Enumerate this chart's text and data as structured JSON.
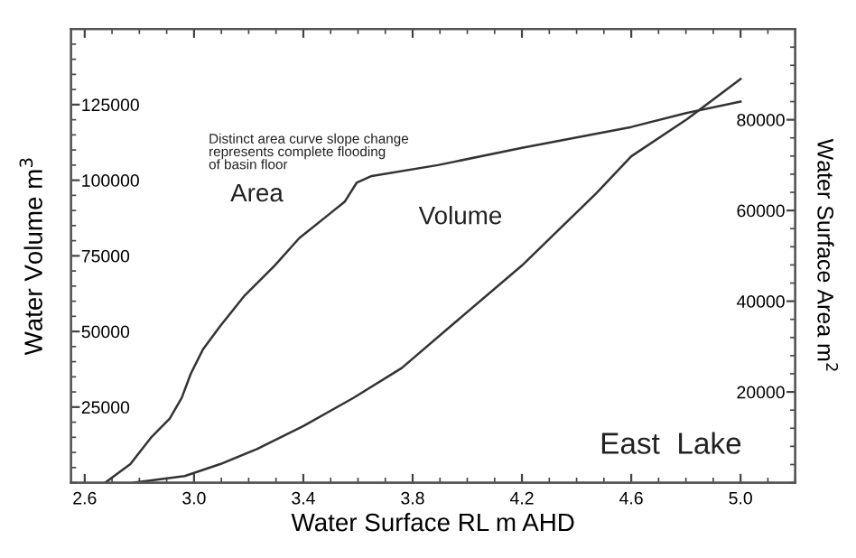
{
  "chart_data": {
    "type": "line",
    "xlabel": "Water Surface RL m AHD",
    "ylabel": "Water Volume m$^{3}$",
    "y2label": "Water Surface Area m$^{2}$",
    "xlim": [
      2.55,
      5.2
    ],
    "xticks": [
      2.6,
      {
        "value": 3.0,
        "label": "3.0"
      },
      3.4,
      3.8,
      4.2,
      4.6,
      {
        "value": 5.0,
        "label": "5.0"
      }
    ],
    "ylim": [
      0,
      150000
    ],
    "yticks": [
      25000,
      50000,
      75000,
      100000,
      125000
    ],
    "y2lim": [
      0,
      100000
    ],
    "y2ticks": [
      20000,
      40000,
      60000,
      80000
    ],
    "grid": false,
    "legend": false,
    "series": [
      {
        "name": "Area",
        "axis": "y2",
        "color": "#333333",
        "x": [
          2.675,
          2.767,
          2.845,
          2.911,
          2.955,
          2.988,
          3.032,
          3.098,
          3.186,
          3.296,
          3.385,
          3.495,
          3.551,
          3.595,
          3.65,
          3.892,
          4.2,
          4.6,
          4.804,
          5.0
        ],
        "values": [
          0,
          4100,
          10100,
          14100,
          18700,
          24000,
          29300,
          34700,
          41300,
          47900,
          53900,
          59200,
          61900,
          66100,
          67600,
          70000,
          73800,
          78400,
          81500,
          84000
        ]
      },
      {
        "name": "Volume",
        "color": "#333333",
        "x": [
          2.78,
          2.966,
          3.098,
          3.23,
          3.4,
          3.583,
          3.76,
          3.94,
          4.2,
          4.471,
          4.6,
          4.804,
          5.0
        ],
        "values": [
          0,
          2200,
          6200,
          11100,
          18700,
          28000,
          37900,
          51800,
          71800,
          95600,
          107900,
          120200,
          133500
        ]
      }
    ],
    "annotations": [
      "Distinct area curve slope change\nrepresents complete flooding\nof basin floor",
      "East  Lake"
    ]
  }
}
